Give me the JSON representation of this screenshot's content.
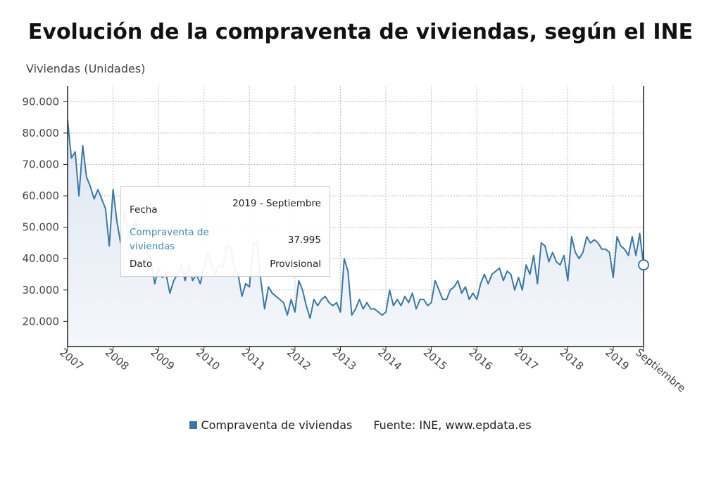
{
  "title": "Evolución de la compraventa de viviendas, según el INE",
  "colors": {
    "line": "#3b77a6",
    "area_top": "#dde6f1",
    "area_bottom": "#f4f7fb",
    "grid": "#bbbbbb",
    "axis": "#222222"
  },
  "legend": {
    "series_label": "Compraventa de viviendas",
    "source": "Fuente: INE, www.epdata.es"
  },
  "tooltip": {
    "row1_label": "Fecha",
    "row1_value": "2019 - Septiembre",
    "row2_label": "Compraventa de viviendas",
    "row2_value": "37.995",
    "row3_label": "Dato",
    "row3_value": "Provisional"
  },
  "chart_data": {
    "type": "area",
    "title": "Evolución de la compraventa de viviendas, según el INE",
    "ylabel": "Viviendas (Unidades)",
    "xlabel": "",
    "ylim": [
      12000,
      95000
    ],
    "yticks": [
      20000,
      30000,
      40000,
      50000,
      60000,
      70000,
      80000,
      90000
    ],
    "ytick_labels": [
      "20.000",
      "30.000",
      "40.000",
      "50.000",
      "60.000",
      "70.000",
      "80.000",
      "90.000"
    ],
    "x_tick_labels": [
      "2007",
      "2008",
      "2009",
      "2010",
      "2011",
      "2012",
      "2013",
      "2014",
      "2015",
      "2016",
      "2017",
      "2018",
      "2019",
      "Septiembre"
    ],
    "x_start": "2007-01",
    "x_end": "2019-09",
    "grid": true,
    "legend_position": "bottom",
    "highlight": {
      "x": "2019-09",
      "y": 37995,
      "note": "Provisional"
    },
    "series": [
      {
        "name": "Compraventa de viviendas",
        "frequency": "monthly",
        "values": [
          84000,
          72000,
          74000,
          60000,
          76000,
          66000,
          63000,
          59000,
          62000,
          59000,
          56000,
          44000,
          62000,
          52000,
          45000,
          55000,
          48000,
          46000,
          52000,
          44000,
          44000,
          42000,
          40000,
          32000,
          37000,
          34000,
          35000,
          29000,
          33000,
          35000,
          38000,
          33000,
          38000,
          33000,
          35000,
          32000,
          37000,
          42000,
          38000,
          35000,
          38000,
          37000,
          44000,
          44000,
          37000,
          35000,
          28000,
          32000,
          31000,
          45000,
          45000,
          33000,
          24000,
          31000,
          29000,
          28000,
          27000,
          26000,
          22000,
          27000,
          23000,
          33000,
          30000,
          25000,
          21000,
          27000,
          25000,
          27000,
          28000,
          26000,
          25000,
          26000,
          23000,
          40000,
          36000,
          22000,
          24000,
          27000,
          24000,
          26000,
          24000,
          24000,
          23000,
          22000,
          23000,
          30000,
          25000,
          27000,
          25000,
          28000,
          26000,
          29000,
          24000,
          27000,
          27000,
          25000,
          26000,
          33000,
          30000,
          27000,
          27000,
          30000,
          31000,
          33000,
          29000,
          31000,
          27000,
          29000,
          27000,
          32000,
          35000,
          32000,
          35000,
          36000,
          37000,
          33000,
          36000,
          35000,
          30000,
          34000,
          30000,
          38000,
          35000,
          41000,
          32000,
          45000,
          44000,
          39000,
          42000,
          39000,
          38000,
          41000,
          33000,
          47000,
          42000,
          40000,
          42000,
          47000,
          45000,
          46000,
          45000,
          43000,
          43000,
          42000,
          34000,
          47000,
          44000,
          43000,
          41000,
          47000,
          41000,
          48000,
          37995
        ]
      }
    ]
  }
}
